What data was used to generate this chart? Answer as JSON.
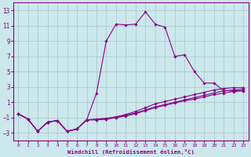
{
  "xlabel": "Windchill (Refroidissement éolien,°C)",
  "background_color": "#cce8ec",
  "line_color": "#880088",
  "grid_color": "#aacccc",
  "xlim": [
    -0.5,
    23.5
  ],
  "ylim": [
    -4,
    14
  ],
  "xticks": [
    0,
    1,
    2,
    3,
    4,
    5,
    6,
    7,
    8,
    9,
    10,
    11,
    12,
    13,
    14,
    15,
    16,
    17,
    18,
    19,
    20,
    21,
    22,
    23
  ],
  "yticks": [
    -3,
    -1,
    1,
    3,
    5,
    7,
    9,
    11,
    13
  ],
  "lines": [
    {
      "x": [
        0,
        1,
        2,
        3,
        4,
        5,
        6,
        7,
        8,
        9,
        10,
        11,
        12,
        13,
        14,
        15,
        16,
        17,
        18,
        19,
        20,
        21,
        22,
        23
      ],
      "y": [
        -0.5,
        -1.2,
        -2.8,
        -1.6,
        -1.4,
        -2.8,
        -2.5,
        -1.3,
        2.2,
        9.0,
        11.2,
        11.1,
        11.2,
        12.8,
        11.2,
        10.8,
        7.0,
        7.2,
        5.0,
        3.5,
        3.5,
        2.5,
        2.5,
        2.5
      ]
    },
    {
      "x": [
        0,
        1,
        2,
        3,
        4,
        5,
        6,
        7,
        8,
        9,
        10,
        11,
        12,
        13,
        14,
        15,
        16,
        17,
        18,
        19,
        20,
        21,
        22,
        23
      ],
      "y": [
        -0.5,
        -1.2,
        -2.8,
        -1.6,
        -1.4,
        -2.8,
        -2.5,
        -1.3,
        -1.2,
        -1.1,
        -0.9,
        -0.6,
        -0.2,
        0.3,
        0.8,
        1.1,
        1.4,
        1.7,
        2.0,
        2.3,
        2.6,
        2.8,
        2.9,
        2.9
      ]
    },
    {
      "x": [
        0,
        1,
        2,
        3,
        4,
        5,
        6,
        7,
        8,
        9,
        10,
        11,
        12,
        13,
        14,
        15,
        16,
        17,
        18,
        19,
        20,
        21,
        22,
        23
      ],
      "y": [
        -0.5,
        -1.2,
        -2.8,
        -1.6,
        -1.4,
        -2.8,
        -2.5,
        -1.3,
        -1.3,
        -1.2,
        -1.0,
        -0.7,
        -0.4,
        0.0,
        0.4,
        0.7,
        1.0,
        1.3,
        1.6,
        1.9,
        2.2,
        2.5,
        2.6,
        2.7
      ]
    },
    {
      "x": [
        0,
        1,
        2,
        3,
        4,
        5,
        6,
        7,
        8,
        9,
        10,
        11,
        12,
        13,
        14,
        15,
        16,
        17,
        18,
        19,
        20,
        21,
        22,
        23
      ],
      "y": [
        -0.5,
        -1.2,
        -2.8,
        -1.6,
        -1.4,
        -2.8,
        -2.5,
        -1.3,
        -1.3,
        -1.2,
        -1.0,
        -0.8,
        -0.5,
        -0.1,
        0.3,
        0.6,
        0.9,
        1.2,
        1.4,
        1.7,
        2.0,
        2.2,
        2.4,
        2.5
      ]
    }
  ]
}
